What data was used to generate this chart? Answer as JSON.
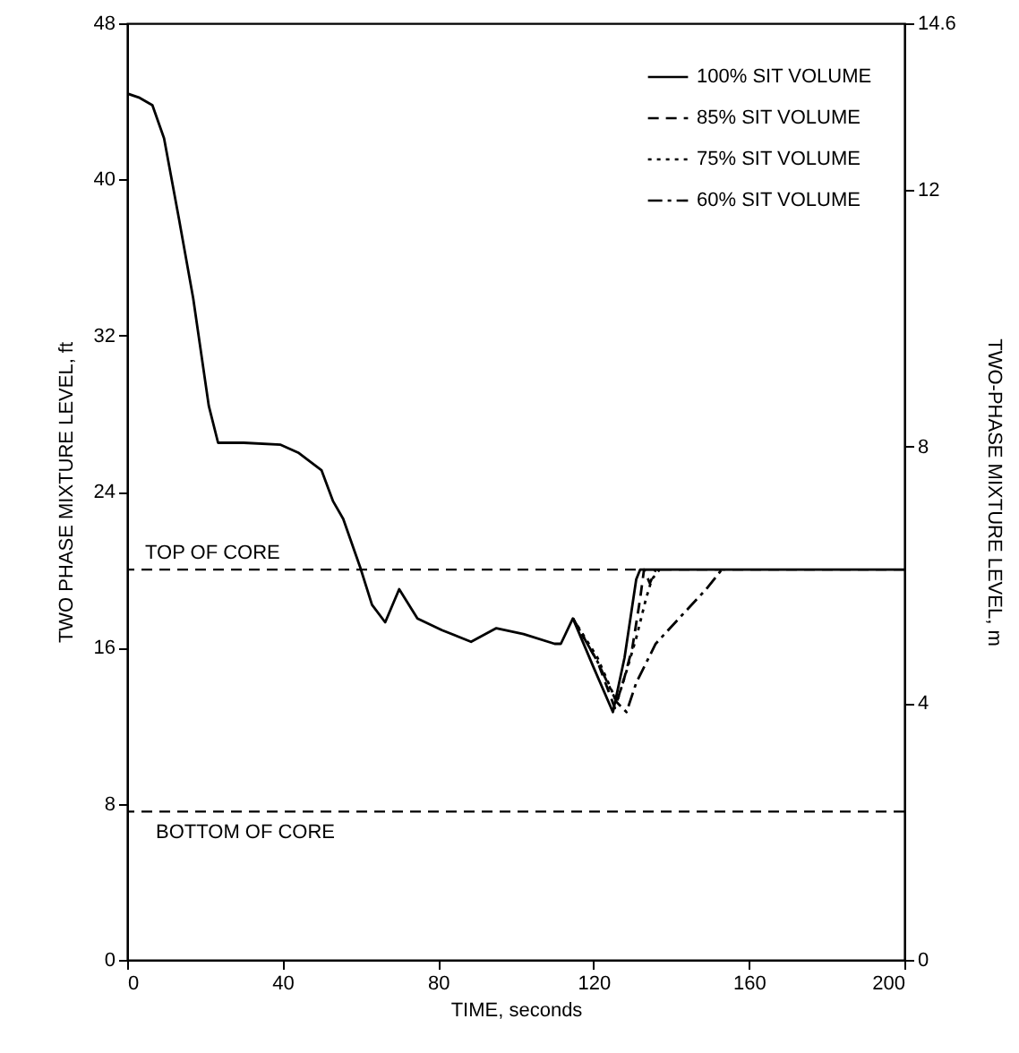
{
  "chart_data": {
    "type": "line",
    "xlabel": "TIME, seconds",
    "ylabel": "TWO PHASE MIXTURE LEVEL, ft",
    "y2label": "TWO-PHASE MIXTURE LEVEL, m",
    "xlim": [
      0,
      200
    ],
    "xticks": [
      0,
      40,
      80,
      120,
      160,
      200
    ],
    "ylim": [
      0,
      48
    ],
    "yticks": [
      0,
      8,
      16,
      24,
      32,
      40,
      48
    ],
    "y2lim": [
      0,
      14.6
    ],
    "y2ticks": [
      0,
      4,
      8,
      12,
      14.6
    ],
    "grid": false,
    "legend": "top right",
    "series": [
      {
        "name": "100% SIT VOLUME",
        "color": "#000000",
        "line_style": "solid",
        "x": [
          0,
          3,
          6.5,
          9.5,
          13.4,
          17,
          21,
          23.4,
          30,
          39.5,
          44,
          50,
          53,
          55.6,
          60,
          63,
          66.4,
          70,
          74.7,
          81,
          88.5,
          95,
          102,
          110,
          111.6,
          114.7,
          120,
          125,
          128,
          131,
          132,
          135,
          150,
          170,
          200
        ],
        "values": [
          44.4,
          44.2,
          43.8,
          42.1,
          37.9,
          33.9,
          28.4,
          26.5,
          26.5,
          26.4,
          26.0,
          25.1,
          23.5,
          22.6,
          20.1,
          18.2,
          17.3,
          19.0,
          17.5,
          16.9,
          16.3,
          17.0,
          16.7,
          16.2,
          16.2,
          17.5,
          15.0,
          12.7,
          15.5,
          19.5,
          20.0,
          20.0,
          20.0,
          20.0,
          20.0
        ]
      },
      {
        "name": "85% SIT VOLUME",
        "color": "#000000",
        "line_style": "dashed",
        "x": [
          114.7,
          121,
          125.5,
          128,
          130,
          132,
          133,
          134.5,
          136
        ],
        "values": [
          17.5,
          15.3,
          12.9,
          14.5,
          16.0,
          18.5,
          20.0,
          19.3,
          20.0
        ]
      },
      {
        "name": "75% SIT VOLUME",
        "color": "#000000",
        "line_style": "dotted",
        "x": [
          114.7,
          121,
          126,
          128.5,
          131,
          133.5,
          135,
          137
        ],
        "values": [
          17.5,
          15.5,
          13.2,
          14.8,
          16.5,
          18.5,
          19.5,
          20.0
        ]
      },
      {
        "name": "60% SIT VOLUME",
        "color": "#000000",
        "line_style": "dashdot",
        "x": [
          114.7,
          121,
          126,
          128.5,
          131,
          136,
          142,
          149,
          153
        ],
        "values": [
          17.5,
          15.3,
          13.2,
          12.7,
          14.2,
          16.2,
          17.5,
          19.0,
          20.0
        ]
      }
    ],
    "ref_lines": [
      {
        "axis": "y",
        "value": 20,
        "label": "TOP OF CORE",
        "line_style": "dashed",
        "color": "#000000"
      },
      {
        "axis": "y",
        "value": 7.6,
        "label": "BOTTOM OF CORE",
        "line_style": "dashed",
        "color": "#000000"
      }
    ]
  }
}
